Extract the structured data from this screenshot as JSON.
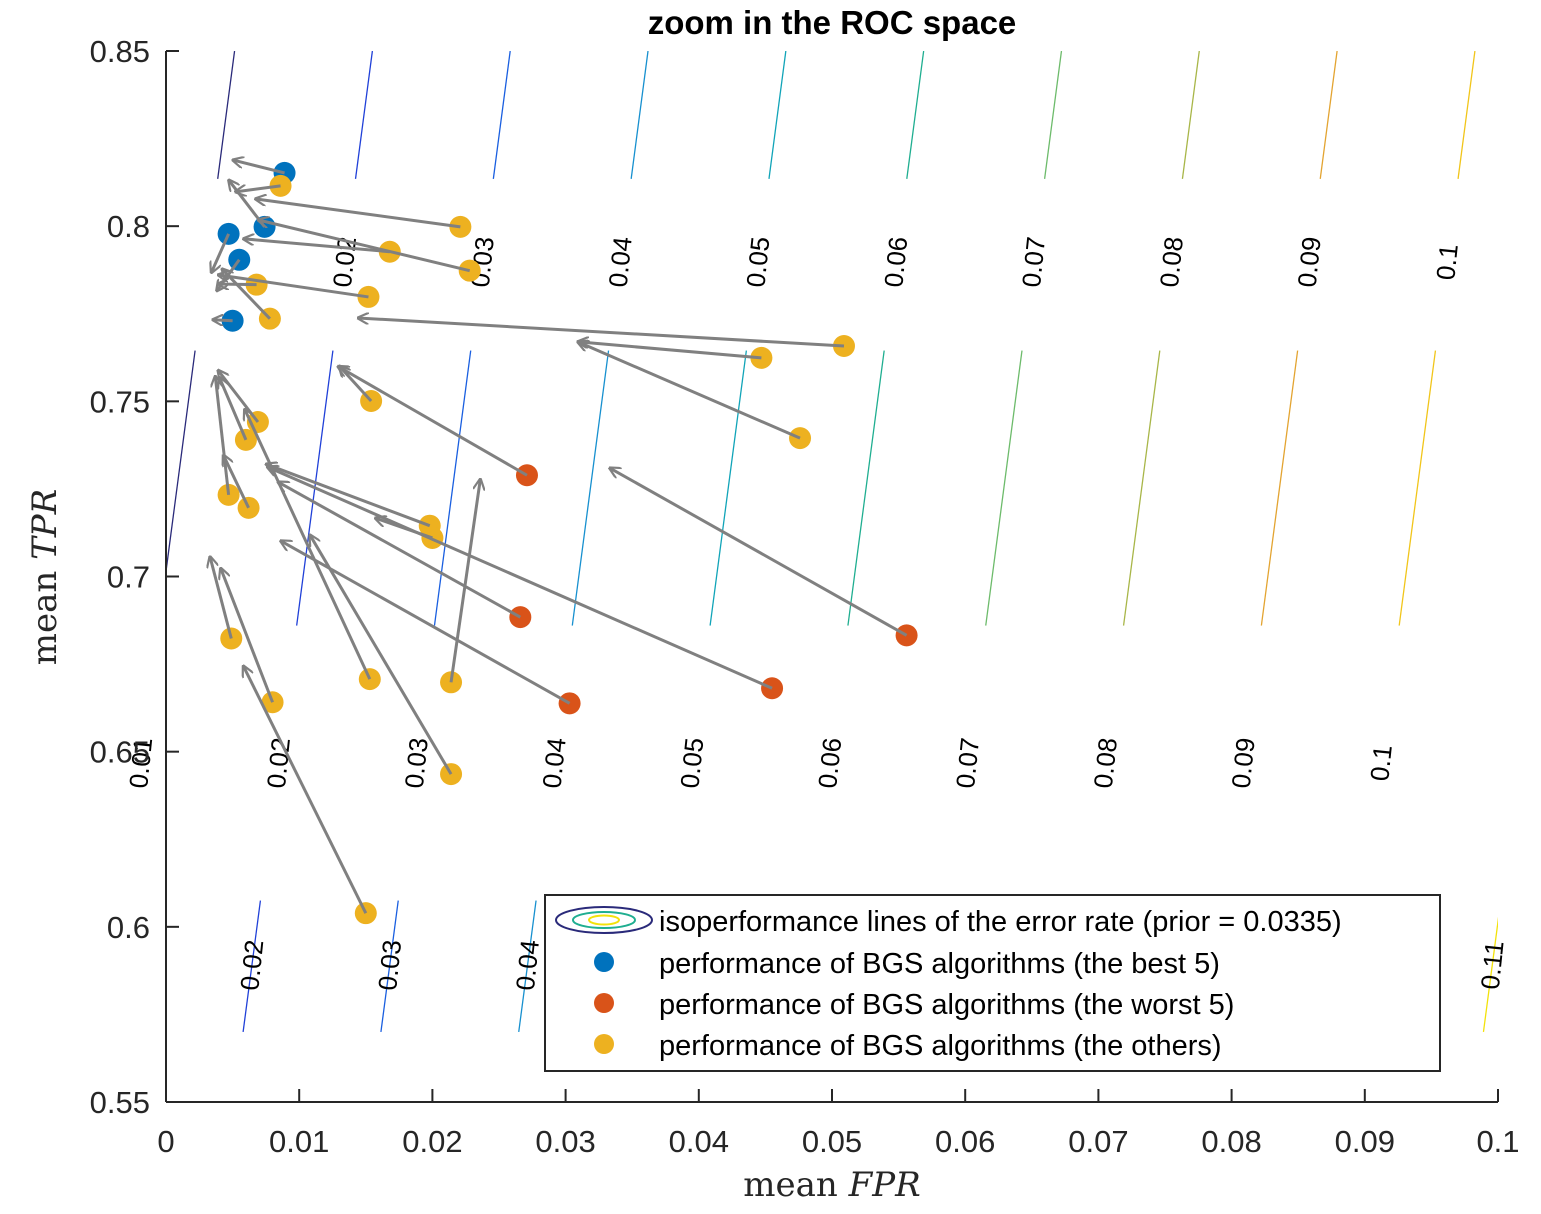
{
  "chart_data": {
    "type": "scatter",
    "title": "zoom in the ROC space",
    "xlabel_prefix": "mean",
    "xlabel_var": "FPR",
    "ylabel_prefix": "mean",
    "ylabel_var": "TPR",
    "xlim": [
      0,
      0.1
    ],
    "ylim": [
      0.55,
      0.85
    ],
    "x_ticks": [
      0,
      0.01,
      0.02,
      0.03,
      0.04,
      0.05,
      0.06,
      0.07,
      0.08,
      0.09,
      0.1
    ],
    "x_tick_labels": [
      "0",
      "0.01",
      "0.02",
      "0.03",
      "0.04",
      "0.05",
      "0.06",
      "0.07",
      "0.08",
      "0.09",
      "0.1"
    ],
    "y_ticks": [
      0.55,
      0.6,
      0.65,
      0.7,
      0.75,
      0.8,
      0.85
    ],
    "y_tick_labels": [
      "0.55",
      "0.6",
      "0.65",
      "0.7",
      "0.75",
      "0.8",
      "0.85"
    ],
    "grid": false,
    "legend_position": "bottom-right",
    "isoperformance": {
      "prior": 0.0335,
      "levels": [
        0.01,
        0.02,
        0.03,
        0.04,
        0.05,
        0.06,
        0.07,
        0.08,
        0.09,
        0.1,
        0.11
      ],
      "colors": [
        "#2a2a7a",
        "#2040d8",
        "#1a5fe0",
        "#1790cf",
        "#11a4b8",
        "#1fae90",
        "#6dbb6b",
        "#a8b648",
        "#e3a431",
        "#f1c51a",
        "#f3e20a"
      ],
      "labels_top": [
        "0.02",
        "0.03",
        "0.04",
        "0.05",
        "0.06",
        "0.07",
        "0.08",
        "0.09",
        "0.1"
      ],
      "labels_middle": [
        "0.01",
        "0.02",
        "0.03",
        "0.04",
        "0.05",
        "0.06",
        "0.07",
        "0.08",
        "0.09",
        "0.1"
      ],
      "labels_bottom": [
        "0.02",
        "0.03",
        "0.04",
        "0.11"
      ]
    },
    "series": [
      {
        "name": "performance of BGS algorithms (the best 5)",
        "color": "#0072bd",
        "points": [
          {
            "fpr": 0.0089,
            "tpr": 0.8152,
            "to_fpr": 0.005,
            "to_tpr": 0.8189
          },
          {
            "fpr": 0.0074,
            "tpr": 0.7998,
            "to_fpr": 0.0047,
            "to_tpr": 0.8132
          },
          {
            "fpr": 0.0047,
            "tpr": 0.7978,
            "to_fpr": 0.0034,
            "to_tpr": 0.7867
          },
          {
            "fpr": 0.0055,
            "tpr": 0.7904,
            "to_fpr": 0.0038,
            "to_tpr": 0.7815
          },
          {
            "fpr": 0.005,
            "tpr": 0.773,
            "to_fpr": 0.0035,
            "to_tpr": 0.7733
          }
        ]
      },
      {
        "name": "performance of BGS algorithms (the worst 5)",
        "color": "#d95319",
        "points": [
          {
            "fpr": 0.0271,
            "tpr": 0.7289,
            "to_fpr": 0.0129,
            "to_tpr": 0.76
          },
          {
            "fpr": 0.0266,
            "tpr": 0.6884,
            "to_fpr": 0.0084,
            "to_tpr": 0.727
          },
          {
            "fpr": 0.0303,
            "tpr": 0.6638,
            "to_fpr": 0.0086,
            "to_tpr": 0.7102
          },
          {
            "fpr": 0.0455,
            "tpr": 0.6681,
            "to_fpr": 0.0076,
            "to_tpr": 0.7313
          },
          {
            "fpr": 0.0556,
            "tpr": 0.6832,
            "to_fpr": 0.0333,
            "to_tpr": 0.731
          }
        ]
      },
      {
        "name": "performance of BGS algorithms (the others)",
        "color": "#edb120",
        "points": [
          {
            "fpr": 0.0086,
            "tpr": 0.8115,
            "to_fpr": 0.0052,
            "to_tpr": 0.8098
          },
          {
            "fpr": 0.0221,
            "tpr": 0.7998,
            "to_fpr": 0.0067,
            "to_tpr": 0.8078
          },
          {
            "fpr": 0.0168,
            "tpr": 0.7927,
            "to_fpr": 0.0058,
            "to_tpr": 0.7964
          },
          {
            "fpr": 0.0228,
            "tpr": 0.7873,
            "to_fpr": 0.0069,
            "to_tpr": 0.8018
          },
          {
            "fpr": 0.0068,
            "tpr": 0.7833,
            "to_fpr": 0.0039,
            "to_tpr": 0.7835
          },
          {
            "fpr": 0.0078,
            "tpr": 0.7736,
            "to_fpr": 0.0042,
            "to_tpr": 0.7878
          },
          {
            "fpr": 0.0152,
            "tpr": 0.7798,
            "to_fpr": 0.0039,
            "to_tpr": 0.7861
          },
          {
            "fpr": 0.0509,
            "tpr": 0.7658,
            "to_fpr": 0.0144,
            "to_tpr": 0.7738
          },
          {
            "fpr": 0.0447,
            "tpr": 0.7624,
            "to_fpr": 0.0309,
            "to_tpr": 0.767
          },
          {
            "fpr": 0.0476,
            "tpr": 0.7395,
            "to_fpr": 0.0309,
            "to_tpr": 0.767
          },
          {
            "fpr": 0.0154,
            "tpr": 0.7501,
            "to_fpr": 0.013,
            "to_tpr": 0.7601
          },
          {
            "fpr": 0.0069,
            "tpr": 0.7441,
            "to_fpr": 0.0039,
            "to_tpr": 0.7589
          },
          {
            "fpr": 0.006,
            "tpr": 0.739,
            "to_fpr": 0.004,
            "to_tpr": 0.7569
          },
          {
            "fpr": 0.0047,
            "tpr": 0.7233,
            "to_fpr": 0.0037,
            "to_tpr": 0.7572
          },
          {
            "fpr": 0.0062,
            "tpr": 0.7196,
            "to_fpr": 0.0043,
            "to_tpr": 0.7347
          },
          {
            "fpr": 0.0198,
            "tpr": 0.7145,
            "to_fpr": 0.0075,
            "to_tpr": 0.7321
          },
          {
            "fpr": 0.02,
            "tpr": 0.711,
            "to_fpr": 0.0157,
            "to_tpr": 0.7167
          },
          {
            "fpr": 0.0049,
            "tpr": 0.6823,
            "to_fpr": 0.0033,
            "to_tpr": 0.7057
          },
          {
            "fpr": 0.008,
            "tpr": 0.6641,
            "to_fpr": 0.0041,
            "to_tpr": 0.7024
          },
          {
            "fpr": 0.0153,
            "tpr": 0.6707,
            "to_fpr": 0.0059,
            "to_tpr": 0.7478
          },
          {
            "fpr": 0.0214,
            "tpr": 0.6698,
            "to_fpr": 0.0236,
            "to_tpr": 0.7278
          },
          {
            "fpr": 0.0214,
            "tpr": 0.6436,
            "to_fpr": 0.0108,
            "to_tpr": 0.7119
          },
          {
            "fpr": 0.015,
            "tpr": 0.6039,
            "to_fpr": 0.0058,
            "to_tpr": 0.6745
          }
        ]
      }
    ],
    "arrow_color": "#808080",
    "legend": [
      {
        "label": "isoperformance lines of the error rate (prior = 0.0335)",
        "kind": "contour"
      },
      {
        "label": "performance of BGS algorithms (the best 5)",
        "kind": "marker",
        "color": "#0072bd"
      },
      {
        "label": "performance of BGS algorithms (the worst 5)",
        "kind": "marker",
        "color": "#d95319"
      },
      {
        "label": "performance of BGS algorithms (the others)",
        "kind": "marker",
        "color": "#edb120"
      }
    ]
  }
}
